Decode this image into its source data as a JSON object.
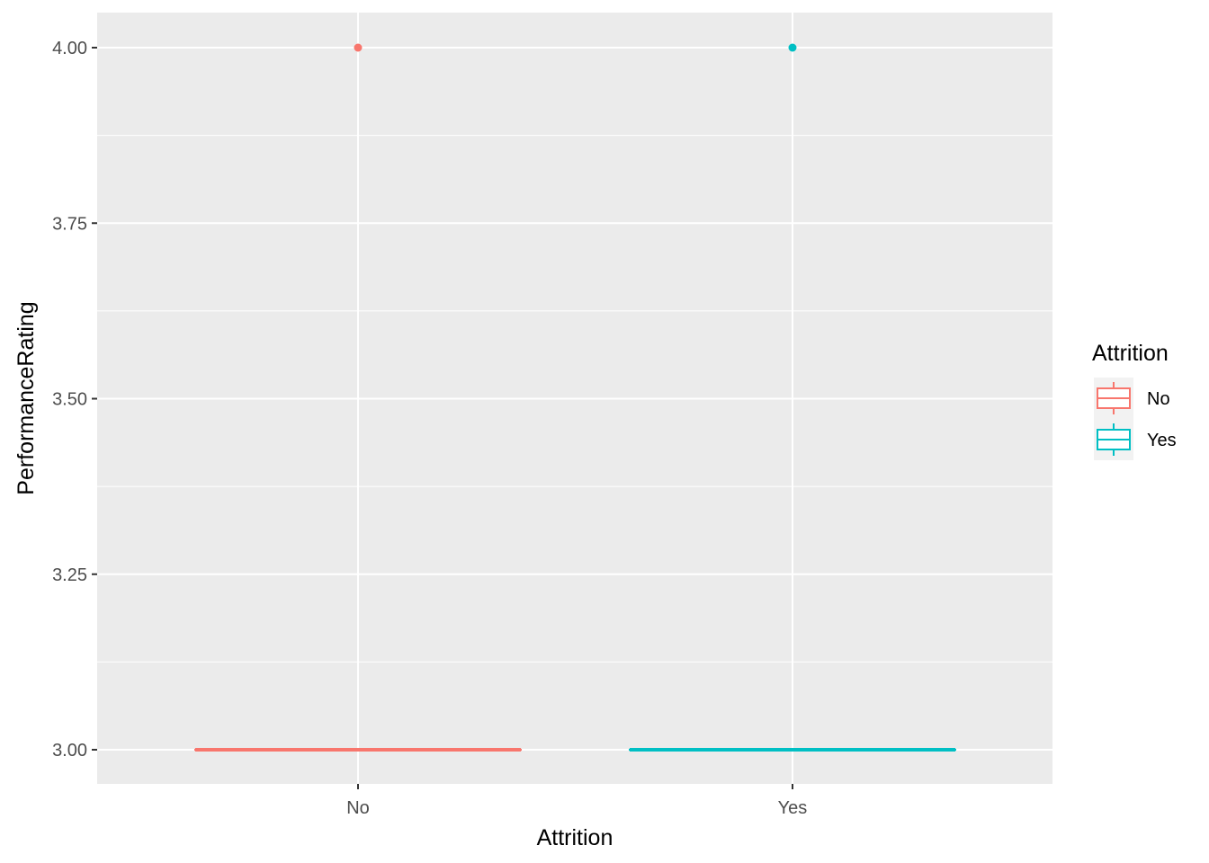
{
  "chart_data": {
    "type": "boxplot",
    "xlabel": "Attrition",
    "ylabel": "PerformanceRating",
    "categories": [
      "No",
      "Yes"
    ],
    "ylim": [
      2.95,
      4.05
    ],
    "y_ticks": [
      3.0,
      3.25,
      3.5,
      3.75,
      4.0
    ],
    "y_tick_labels": [
      "3.00",
      "3.25",
      "3.50",
      "3.75",
      "4.00"
    ],
    "grid": true,
    "legend": {
      "title": "Attrition",
      "position": "right",
      "entries": [
        "No",
        "Yes"
      ]
    },
    "series": [
      {
        "name": "No",
        "color": "#f8766d",
        "min": 3,
        "q1": 3,
        "median": 3,
        "q3": 3,
        "max": 3,
        "outliers": [
          4
        ]
      },
      {
        "name": "Yes",
        "color": "#00bfc4",
        "min": 3,
        "q1": 3,
        "median": 3,
        "q3": 3,
        "max": 3,
        "outliers": [
          4
        ]
      }
    ],
    "panel_background": "#ebebeb",
    "grid_color": "#ffffff"
  }
}
